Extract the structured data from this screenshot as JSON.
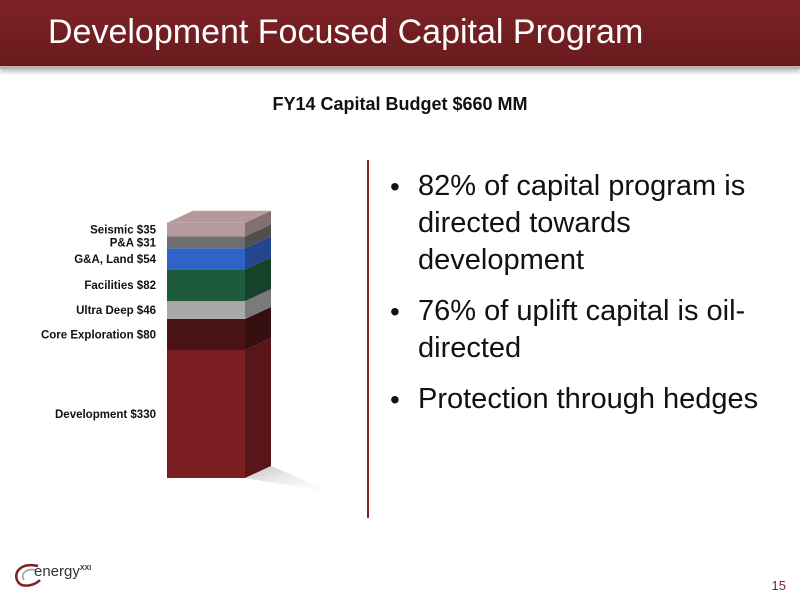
{
  "slide": {
    "title": "Development Focused Capital Program",
    "page_number": "15"
  },
  "logo": {
    "text": "energy",
    "suffix": "XXI"
  },
  "bullets": [
    "82% of capital program is directed towards development",
    "76% of uplift capital is oil-directed",
    "Protection through hedges"
  ],
  "chart_data": {
    "type": "bar",
    "title": "FY14 Capital Budget $660 MM",
    "stacked": true,
    "categories": [
      "FY14"
    ],
    "series": [
      {
        "name": "Development",
        "label": "Development $330",
        "values": [
          330
        ],
        "color": "#7b1e21"
      },
      {
        "name": "Core Exploration",
        "label": "Core Exploration $80",
        "values": [
          80
        ],
        "color": "#4a1416"
      },
      {
        "name": "Ultra Deep",
        "label": "Ultra Deep $46",
        "values": [
          46
        ],
        "color": "#a9a9a9"
      },
      {
        "name": "Facilities",
        "label": "Facilities $82",
        "values": [
          82
        ],
        "color": "#1e5a3c"
      },
      {
        "name": "G&A, Land",
        "label": "G&A, Land $54",
        "values": [
          54
        ],
        "color": "#2f63c8"
      },
      {
        "name": "P&A",
        "label": "P&A $31",
        "values": [
          31
        ],
        "color": "#6e6e6e"
      },
      {
        "name": "Seismic",
        "label": "Seismic $35",
        "values": [
          35
        ],
        "color": "#b59a9d"
      }
    ],
    "total": 660,
    "grid": false,
    "legend": "none"
  }
}
